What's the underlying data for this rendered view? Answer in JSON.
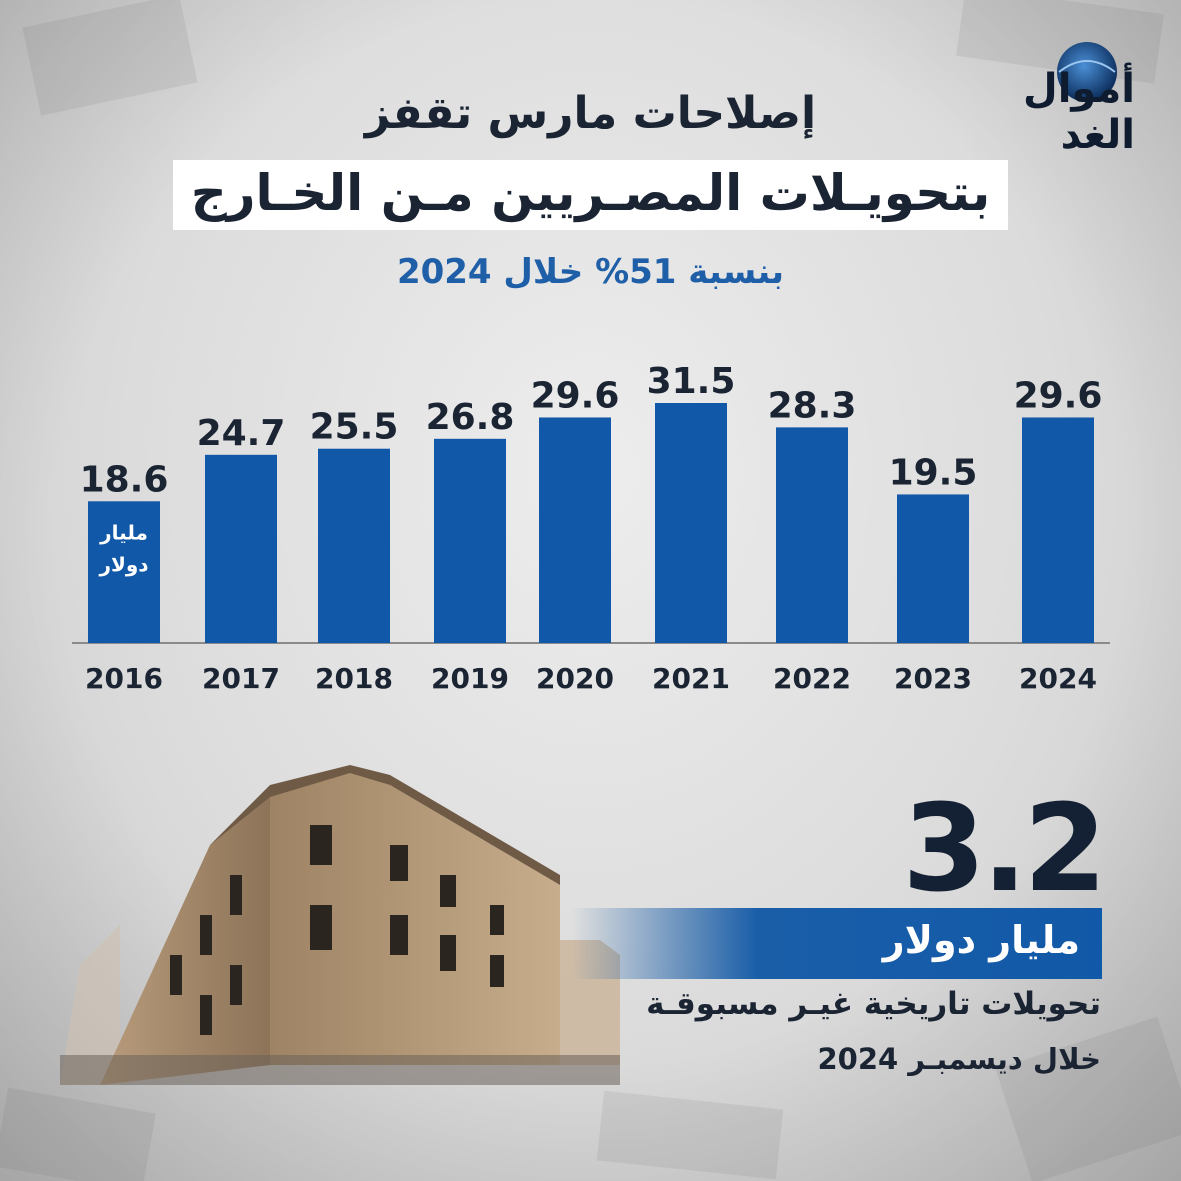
{
  "logo": {
    "text": "أموال الغد"
  },
  "headline": {
    "line1": "إصلاحات مارس تقفز",
    "line2": "بتحويـلات المصـريين مـن الخـارج",
    "subtitle": "بنسبة 51% خلال 2024"
  },
  "chart_data": {
    "type": "bar",
    "categories": [
      "2016",
      "2017",
      "2018",
      "2019",
      "2020",
      "2021",
      "2022",
      "2023",
      "2024"
    ],
    "values": [
      18.6,
      24.7,
      25.5,
      26.8,
      29.6,
      31.5,
      28.3,
      19.5,
      29.6
    ],
    "value_labels": [
      "18.6",
      "24.7",
      "25.5",
      "26.8",
      "29.6",
      "31.5",
      "28.3",
      "19.5",
      "29.6"
    ],
    "unit_label_line1": "مليار",
    "unit_label_line2": "دولار",
    "ylim": [
      0,
      31.5
    ],
    "grid": false,
    "bar_color": "#1159a8"
  },
  "highlight": {
    "value": "3.2",
    "unit": "مليار دولار",
    "description": "تحويلات تاريخية غيـر مسبوقـة",
    "period": "خلال ديسمبـر 2024"
  }
}
